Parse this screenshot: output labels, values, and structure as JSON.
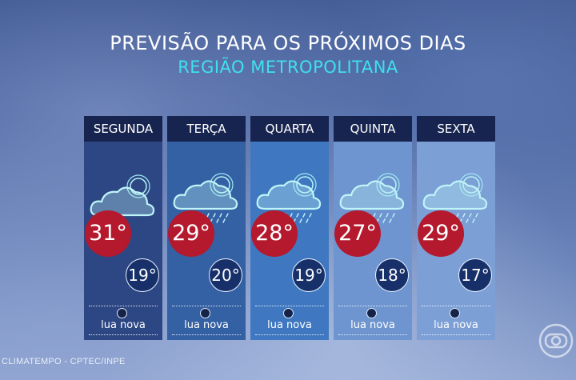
{
  "header": {
    "title": "PREVISÃO PARA OS PRÓXIMOS DIAS",
    "subtitle": "REGIÃO METROPOLITANA"
  },
  "days": [
    {
      "name": "SEGUNDA",
      "icon": "cloud-sun-icon",
      "max": "31°",
      "min": "19°",
      "moon": "lua nova",
      "panel_color": "#2c4784"
    },
    {
      "name": "TERÇA",
      "icon": "cloud-sun-rain-icon",
      "max": "29°",
      "min": "20°",
      "moon": "lua nova",
      "panel_color": "#3460a4"
    },
    {
      "name": "QUARTA",
      "icon": "cloud-sun-rain-icon",
      "max": "28°",
      "min": "19°",
      "moon": "lua nova",
      "panel_color": "#3f78c0"
    },
    {
      "name": "QUINTA",
      "icon": "cloud-sun-rain-icon",
      "max": "27°",
      "min": "18°",
      "moon": "lua nova",
      "panel_color": "#6e95cf"
    },
    {
      "name": "SEXTA",
      "icon": "cloud-sun-rain-icon",
      "max": "29°",
      "min": "17°",
      "moon": "lua nova",
      "panel_color": "#7c9fd6"
    }
  ],
  "footer": {
    "source": "CLIMATEMPO - CPTEC/INPE"
  },
  "colors": {
    "max_temp": "#b4192d",
    "min_temp": "#17306a",
    "subtitle": "#3ee0f0",
    "header": "#17244f"
  }
}
